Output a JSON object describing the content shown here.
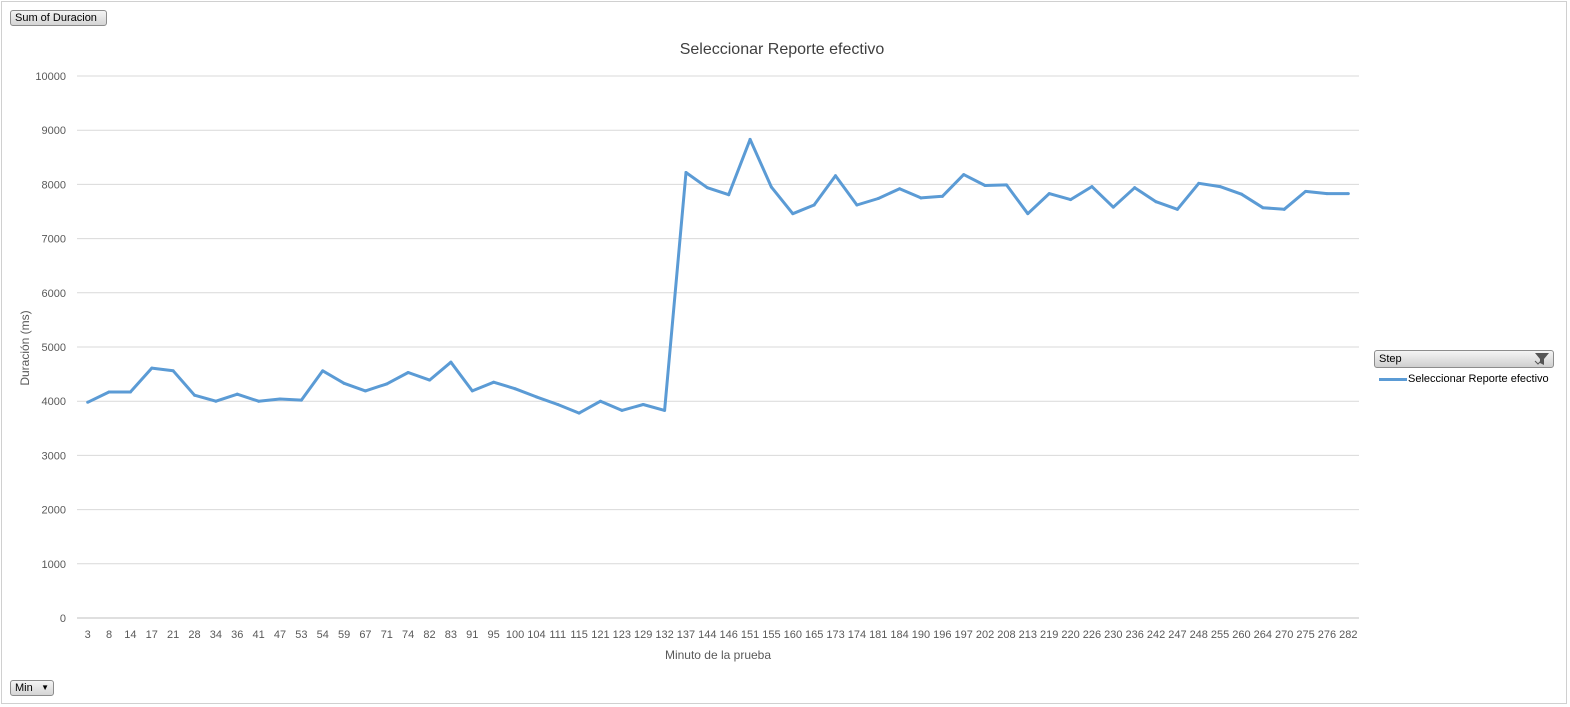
{
  "buttons": {
    "sum_label": "Sum of Duracion",
    "min_label": "Min",
    "step_label": "Step"
  },
  "colors": {
    "series": "#5B9BD5",
    "grid": "#d9d9d9"
  },
  "chart_data": {
    "type": "line",
    "title": "Seleccionar Reporte efectivo",
    "xlabel": "Minuto de la prueba",
    "ylabel": "Duración (ms)",
    "ylim": [
      0,
      10000
    ],
    "yticks": [
      0,
      1000,
      2000,
      3000,
      4000,
      5000,
      6000,
      7000,
      8000,
      9000,
      10000
    ],
    "grid": true,
    "legend_position": "right",
    "categories": [
      "3",
      "8",
      "14",
      "17",
      "21",
      "28",
      "34",
      "36",
      "41",
      "47",
      "53",
      "54",
      "59",
      "67",
      "71",
      "74",
      "82",
      "83",
      "91",
      "95",
      "100",
      "104",
      "111",
      "115",
      "121",
      "123",
      "129",
      "132",
      "137",
      "144",
      "146",
      "151",
      "155",
      "160",
      "165",
      "173",
      "174",
      "181",
      "184",
      "190",
      "196",
      "197",
      "202",
      "208",
      "213",
      "219",
      "220",
      "226",
      "230",
      "236",
      "242",
      "247",
      "248",
      "255",
      "260",
      "264",
      "270",
      "275",
      "276",
      "282"
    ],
    "series": [
      {
        "name": "Seleccionar Reporte efectivo",
        "values": [
          3980,
          4170,
          4170,
          4610,
          4560,
          4110,
          4000,
          4130,
          4000,
          4040,
          4020,
          4560,
          4330,
          4190,
          4320,
          4530,
          4390,
          4720,
          4190,
          4350,
          4230,
          4080,
          3940,
          3780,
          4000,
          3830,
          3940,
          3830,
          8220,
          7940,
          7810,
          8830,
          7950,
          7460,
          7620,
          8160,
          7620,
          7740,
          7920,
          7750,
          7780,
          8180,
          7980,
          7990,
          7460,
          7830,
          7720,
          7960,
          7580,
          7940,
          7680,
          7540,
          8020,
          7960,
          7820,
          7570,
          7540,
          7870,
          7830,
          7830
        ]
      }
    ]
  }
}
